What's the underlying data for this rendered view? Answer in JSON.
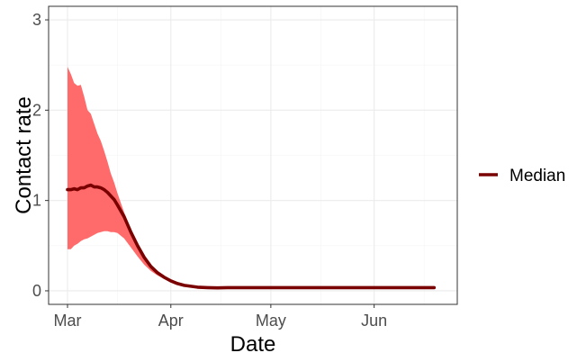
{
  "chart_data": {
    "type": "line",
    "title": "",
    "xlabel": "Date",
    "ylabel": "Contact rate",
    "xlim": [
      "2020-03-01",
      "2020-06-20"
    ],
    "ylim": [
      -0.15,
      3.15
    ],
    "x_ticks": [
      {
        "date": "2020-03-01",
        "label": "Mar"
      },
      {
        "date": "2020-04-01",
        "label": "Apr"
      },
      {
        "date": "2020-05-01",
        "label": "May"
      },
      {
        "date": "2020-06-01",
        "label": "Jun"
      }
    ],
    "y_ticks": [
      0,
      1,
      2,
      3
    ],
    "grid": true,
    "legend_position": "right",
    "series": [
      {
        "name": "Median",
        "color": "#7a0000",
        "x": [
          "2020-03-01",
          "2020-03-02",
          "2020-03-03",
          "2020-03-04",
          "2020-03-05",
          "2020-03-06",
          "2020-03-07",
          "2020-03-08",
          "2020-03-09",
          "2020-03-10",
          "2020-03-11",
          "2020-03-12",
          "2020-03-13",
          "2020-03-14",
          "2020-03-15",
          "2020-03-16",
          "2020-03-18",
          "2020-03-20",
          "2020-03-22",
          "2020-03-24",
          "2020-03-26",
          "2020-03-28",
          "2020-03-30",
          "2020-04-01",
          "2020-04-03",
          "2020-04-05",
          "2020-04-07",
          "2020-04-09",
          "2020-04-12",
          "2020-04-15",
          "2020-04-18",
          "2020-04-25",
          "2020-05-01",
          "2020-05-15",
          "2020-06-01",
          "2020-06-10",
          "2020-06-19"
        ],
        "values": [
          1.12,
          1.12,
          1.13,
          1.12,
          1.14,
          1.14,
          1.16,
          1.17,
          1.15,
          1.15,
          1.14,
          1.12,
          1.09,
          1.05,
          1.01,
          0.95,
          0.82,
          0.65,
          0.5,
          0.37,
          0.27,
          0.2,
          0.15,
          0.11,
          0.08,
          0.06,
          0.05,
          0.04,
          0.035,
          0.032,
          0.035,
          0.035,
          0.035,
          0.035,
          0.035,
          0.035,
          0.035
        ]
      }
    ],
    "band": {
      "color": "#ff6b6b",
      "x": [
        "2020-03-01",
        "2020-03-02",
        "2020-03-03",
        "2020-03-04",
        "2020-03-05",
        "2020-03-06",
        "2020-03-07",
        "2020-03-08",
        "2020-03-09",
        "2020-03-10",
        "2020-03-11",
        "2020-03-12",
        "2020-03-13",
        "2020-03-14",
        "2020-03-15",
        "2020-03-16",
        "2020-03-18",
        "2020-03-20",
        "2020-03-22",
        "2020-03-24",
        "2020-03-26",
        "2020-03-28",
        "2020-03-30",
        "2020-04-01",
        "2020-04-03",
        "2020-04-05",
        "2020-04-07",
        "2020-04-09",
        "2020-04-12",
        "2020-04-15",
        "2020-04-18",
        "2020-04-25",
        "2020-05-01",
        "2020-05-15",
        "2020-06-01",
        "2020-06-10",
        "2020-06-19"
      ],
      "upper": [
        2.48,
        2.4,
        2.3,
        2.27,
        2.28,
        2.15,
        2.0,
        1.96,
        1.85,
        1.74,
        1.66,
        1.55,
        1.43,
        1.3,
        1.2,
        1.08,
        0.87,
        0.68,
        0.52,
        0.38,
        0.28,
        0.21,
        0.16,
        0.12,
        0.09,
        0.07,
        0.055,
        0.045,
        0.04,
        0.035,
        0.035,
        0.035,
        0.035,
        0.035,
        0.035,
        0.035,
        0.035
      ],
      "lower": [
        0.46,
        0.46,
        0.5,
        0.52,
        0.55,
        0.57,
        0.58,
        0.6,
        0.62,
        0.64,
        0.65,
        0.66,
        0.66,
        0.65,
        0.65,
        0.64,
        0.58,
        0.48,
        0.38,
        0.29,
        0.22,
        0.17,
        0.13,
        0.1,
        0.075,
        0.055,
        0.045,
        0.04,
        0.035,
        0.03,
        0.03,
        0.035,
        0.035,
        0.035,
        0.035,
        0.035,
        0.035
      ]
    }
  }
}
